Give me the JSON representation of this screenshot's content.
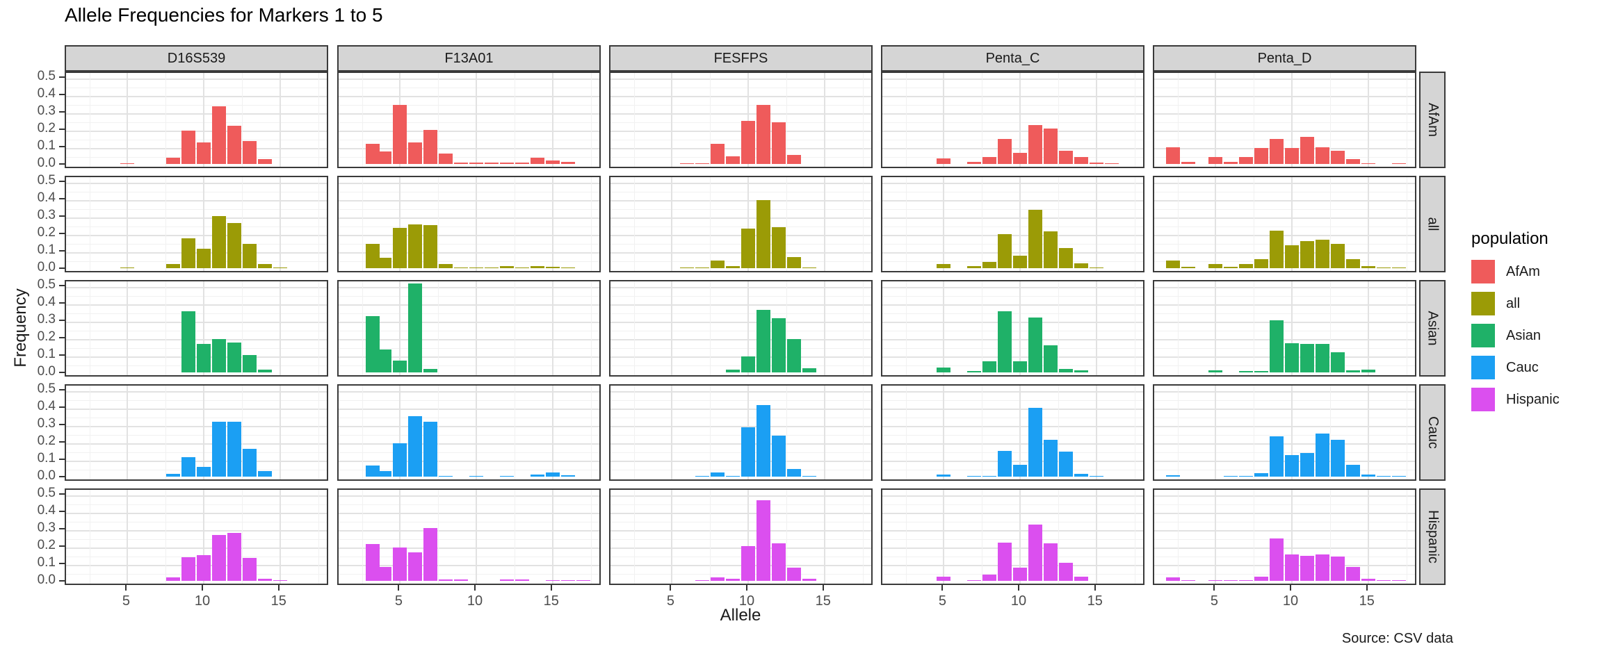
{
  "title": "Allele Frequencies for Markers 1 to 5",
  "caption": "Source: CSV data",
  "axes": {
    "x_label": "Allele",
    "y_label": "Frequency",
    "x_ticks": [
      "5",
      "10",
      "15"
    ],
    "x_tick_values": [
      5,
      10,
      15
    ],
    "x_minor_values": [
      2.5,
      7.5,
      12.5,
      17.5
    ],
    "y_ticks": [
      "0.0",
      "0.1",
      "0.2",
      "0.3",
      "0.4",
      "0.5"
    ],
    "y_tick_values": [
      0.0,
      0.1,
      0.2,
      0.3,
      0.4,
      0.5
    ]
  },
  "legend": {
    "title": "population",
    "entries": [
      {
        "label": "AfAm",
        "color": "#EF5B5B"
      },
      {
        "label": "all",
        "color": "#9B9B06"
      },
      {
        "label": "Asian",
        "color": "#1FB168"
      },
      {
        "label": "Cauc",
        "color": "#1B9FF3"
      },
      {
        "label": "Hispanic",
        "color": "#DB4FEF"
      }
    ]
  },
  "chart_data": {
    "type": "bar",
    "title": "Allele Frequencies for Markers 1 to 5",
    "xlabel": "Allele",
    "ylabel": "Frequency",
    "ylim": [
      0,
      0.5
    ],
    "xlim": [
      1,
      18.25
    ],
    "grid": "on",
    "legend_position": "right",
    "facet_columns": [
      "D16S539",
      "F13A01",
      "FESFPS",
      "Penta_C",
      "Penta_D"
    ],
    "facet_rows": [
      "AfAm",
      "all",
      "Asian",
      "Cauc",
      "Hispanic"
    ],
    "series": [
      {
        "marker": "D16S539",
        "population": "AfAm",
        "points": [
          [
            5,
            0.004
          ],
          [
            8,
            0.035
          ],
          [
            9,
            0.19
          ],
          [
            10,
            0.125
          ],
          [
            11,
            0.33
          ],
          [
            12,
            0.22
          ],
          [
            13,
            0.13
          ],
          [
            14,
            0.028
          ]
        ]
      },
      {
        "marker": "D16S539",
        "population": "all",
        "points": [
          [
            5,
            0.003
          ],
          [
            8,
            0.025
          ],
          [
            9,
            0.17
          ],
          [
            10,
            0.11
          ],
          [
            11,
            0.3
          ],
          [
            12,
            0.26
          ],
          [
            13,
            0.14
          ],
          [
            14,
            0.025
          ],
          [
            15,
            0.003
          ]
        ]
      },
      {
        "marker": "D16S539",
        "population": "Asian",
        "points": [
          [
            9,
            0.35
          ],
          [
            10,
            0.165
          ],
          [
            11,
            0.19
          ],
          [
            12,
            0.17
          ],
          [
            13,
            0.098
          ],
          [
            14,
            0.015
          ]
        ]
      },
      {
        "marker": "D16S539",
        "population": "Cauc",
        "points": [
          [
            8,
            0.015
          ],
          [
            9,
            0.11
          ],
          [
            10,
            0.055
          ],
          [
            11,
            0.315
          ],
          [
            12,
            0.315
          ],
          [
            13,
            0.16
          ],
          [
            14,
            0.03
          ]
        ]
      },
      {
        "marker": "D16S539",
        "population": "Hispanic",
        "points": [
          [
            8,
            0.018
          ],
          [
            9,
            0.136
          ],
          [
            10,
            0.148
          ],
          [
            11,
            0.265
          ],
          [
            12,
            0.277
          ],
          [
            13,
            0.133
          ],
          [
            14,
            0.013
          ],
          [
            15,
            0.003
          ]
        ]
      },
      {
        "marker": "F13A01",
        "population": "AfAm",
        "points": [
          [
            3.2,
            0.115
          ],
          [
            4,
            0.07
          ],
          [
            5,
            0.34
          ],
          [
            6,
            0.125
          ],
          [
            7,
            0.195
          ],
          [
            8,
            0.058
          ],
          [
            9,
            0.006
          ],
          [
            10,
            0.006
          ],
          [
            11,
            0.006
          ],
          [
            12,
            0.006
          ],
          [
            13,
            0.006
          ],
          [
            14,
            0.035
          ],
          [
            15,
            0.02
          ],
          [
            16,
            0.013
          ]
        ]
      },
      {
        "marker": "F13A01",
        "population": "all",
        "points": [
          [
            3.2,
            0.14
          ],
          [
            4,
            0.06
          ],
          [
            5,
            0.23
          ],
          [
            6,
            0.25
          ],
          [
            7,
            0.248
          ],
          [
            8,
            0.022
          ],
          [
            9,
            0.004
          ],
          [
            10,
            0.004
          ],
          [
            11,
            0.004
          ],
          [
            12,
            0.01
          ],
          [
            13,
            0.004
          ],
          [
            14,
            0.012
          ],
          [
            15,
            0.007
          ],
          [
            16,
            0.005
          ]
        ]
      },
      {
        "marker": "F13A01",
        "population": "Asian",
        "points": [
          [
            3.2,
            0.325
          ],
          [
            4,
            0.13
          ],
          [
            5,
            0.067
          ],
          [
            6,
            0.51
          ],
          [
            7,
            0.021
          ]
        ]
      },
      {
        "marker": "F13A01",
        "population": "Cauc",
        "points": [
          [
            3.2,
            0.062
          ],
          [
            4,
            0.03
          ],
          [
            5,
            0.19
          ],
          [
            6,
            0.348
          ],
          [
            7,
            0.315
          ],
          [
            8,
            0.005
          ],
          [
            10,
            0.004
          ],
          [
            12,
            0.004
          ],
          [
            14,
            0.012
          ],
          [
            15,
            0.022
          ],
          [
            16,
            0.008
          ]
        ]
      },
      {
        "marker": "F13A01",
        "population": "Hispanic",
        "points": [
          [
            3.2,
            0.213
          ],
          [
            4,
            0.08
          ],
          [
            5,
            0.193
          ],
          [
            6,
            0.165
          ],
          [
            7,
            0.305
          ],
          [
            8,
            0.007
          ],
          [
            9,
            0.007
          ],
          [
            12,
            0.007
          ],
          [
            13,
            0.007
          ],
          [
            15,
            0.005
          ],
          [
            16,
            0.005
          ],
          [
            17,
            0.003
          ]
        ]
      },
      {
        "marker": "FESFPS",
        "population": "AfAm",
        "points": [
          [
            6,
            0.003
          ],
          [
            7,
            0.003
          ],
          [
            8,
            0.115
          ],
          [
            9,
            0.042
          ],
          [
            10,
            0.248
          ],
          [
            11,
            0.34
          ],
          [
            12,
            0.24
          ],
          [
            13,
            0.052
          ]
        ]
      },
      {
        "marker": "FESFPS",
        "population": "all",
        "points": [
          [
            6,
            0.002
          ],
          [
            7,
            0.003
          ],
          [
            8,
            0.045
          ],
          [
            9,
            0.013
          ],
          [
            10,
            0.228
          ],
          [
            11,
            0.39
          ],
          [
            12,
            0.235
          ],
          [
            13,
            0.065
          ],
          [
            14,
            0.005
          ]
        ]
      },
      {
        "marker": "FESFPS",
        "population": "Asian",
        "points": [
          [
            9,
            0.015
          ],
          [
            10,
            0.093
          ],
          [
            11,
            0.36
          ],
          [
            12,
            0.31
          ],
          [
            13,
            0.19
          ],
          [
            14,
            0.025
          ]
        ]
      },
      {
        "marker": "FESFPS",
        "population": "Cauc",
        "points": [
          [
            7,
            0.003
          ],
          [
            8,
            0.025
          ],
          [
            9,
            0.003
          ],
          [
            10,
            0.285
          ],
          [
            11,
            0.41
          ],
          [
            12,
            0.237
          ],
          [
            13,
            0.042
          ],
          [
            14,
            0.004
          ]
        ]
      },
      {
        "marker": "FESFPS",
        "population": "Hispanic",
        "points": [
          [
            7,
            0.003
          ],
          [
            8,
            0.018
          ],
          [
            9,
            0.012
          ],
          [
            10,
            0.2
          ],
          [
            11,
            0.465
          ],
          [
            12,
            0.217
          ],
          [
            13,
            0.075
          ],
          [
            14,
            0.01
          ]
        ]
      },
      {
        "marker": "Penta_C",
        "population": "AfAm",
        "points": [
          [
            5,
            0.03
          ],
          [
            7,
            0.012
          ],
          [
            8,
            0.04
          ],
          [
            9,
            0.145
          ],
          [
            10,
            0.065
          ],
          [
            11,
            0.225
          ],
          [
            12,
            0.205
          ],
          [
            13,
            0.075
          ],
          [
            14,
            0.04
          ],
          [
            15,
            0.008
          ],
          [
            16,
            0.004
          ]
        ]
      },
      {
        "marker": "Penta_C",
        "population": "all",
        "points": [
          [
            5,
            0.025
          ],
          [
            7,
            0.012
          ],
          [
            8,
            0.035
          ],
          [
            9,
            0.195
          ],
          [
            10,
            0.072
          ],
          [
            11,
            0.335
          ],
          [
            12,
            0.21
          ],
          [
            13,
            0.115
          ],
          [
            14,
            0.027
          ],
          [
            15,
            0.005
          ]
        ]
      },
      {
        "marker": "Penta_C",
        "population": "Asian",
        "points": [
          [
            5,
            0.028
          ],
          [
            7,
            0.008
          ],
          [
            8,
            0.062
          ],
          [
            9,
            0.35
          ],
          [
            10,
            0.062
          ],
          [
            11,
            0.315
          ],
          [
            12,
            0.155
          ],
          [
            13,
            0.018
          ],
          [
            14,
            0.012
          ]
        ]
      },
      {
        "marker": "Penta_C",
        "population": "Cauc",
        "points": [
          [
            5,
            0.012
          ],
          [
            7,
            0.005
          ],
          [
            8,
            0.005
          ],
          [
            9,
            0.148
          ],
          [
            10,
            0.068
          ],
          [
            11,
            0.395
          ],
          [
            12,
            0.21
          ],
          [
            13,
            0.145
          ],
          [
            14,
            0.015
          ],
          [
            15,
            0.003
          ]
        ]
      },
      {
        "marker": "Penta_C",
        "population": "Hispanic",
        "points": [
          [
            5,
            0.025
          ],
          [
            7,
            0.005
          ],
          [
            8,
            0.035
          ],
          [
            9,
            0.22
          ],
          [
            10,
            0.075
          ],
          [
            11,
            0.325
          ],
          [
            12,
            0.215
          ],
          [
            13,
            0.105
          ],
          [
            14,
            0.022
          ]
        ]
      },
      {
        "marker": "Penta_D",
        "population": "AfAm",
        "points": [
          [
            2.2,
            0.095
          ],
          [
            3.2,
            0.012
          ],
          [
            5,
            0.04
          ],
          [
            6,
            0.012
          ],
          [
            7,
            0.04
          ],
          [
            8,
            0.093
          ],
          [
            9,
            0.145
          ],
          [
            10,
            0.093
          ],
          [
            11,
            0.155
          ],
          [
            12,
            0.095
          ],
          [
            13,
            0.075
          ],
          [
            14,
            0.028
          ],
          [
            15,
            0.005
          ],
          [
            17,
            0.005
          ]
        ]
      },
      {
        "marker": "Penta_D",
        "population": "all",
        "points": [
          [
            2.2,
            0.045
          ],
          [
            3.2,
            0.008
          ],
          [
            5,
            0.022
          ],
          [
            6,
            0.006
          ],
          [
            7,
            0.022
          ],
          [
            8,
            0.05
          ],
          [
            9,
            0.215
          ],
          [
            10,
            0.13
          ],
          [
            11,
            0.155
          ],
          [
            12,
            0.165
          ],
          [
            13,
            0.14
          ],
          [
            14,
            0.05
          ],
          [
            15,
            0.012
          ],
          [
            16,
            0.003
          ],
          [
            17,
            0.003
          ]
        ]
      },
      {
        "marker": "Penta_D",
        "population": "Asian",
        "points": [
          [
            5,
            0.012
          ],
          [
            7,
            0.008
          ],
          [
            8,
            0.008
          ],
          [
            9,
            0.3
          ],
          [
            10,
            0.168
          ],
          [
            11,
            0.165
          ],
          [
            12,
            0.165
          ],
          [
            13,
            0.115
          ],
          [
            14,
            0.012
          ],
          [
            15,
            0.015
          ]
        ]
      },
      {
        "marker": "Penta_D",
        "population": "Cauc",
        "points": [
          [
            2.2,
            0.006
          ],
          [
            6,
            0.005
          ],
          [
            7,
            0.005
          ],
          [
            8,
            0.02
          ],
          [
            9,
            0.23
          ],
          [
            10,
            0.125
          ],
          [
            11,
            0.135
          ],
          [
            12,
            0.247
          ],
          [
            13,
            0.21
          ],
          [
            14,
            0.066
          ],
          [
            15,
            0.012
          ],
          [
            16,
            0.005
          ],
          [
            17,
            0.004
          ]
        ]
      },
      {
        "marker": "Penta_D",
        "population": "Hispanic",
        "points": [
          [
            2.2,
            0.02
          ],
          [
            3.2,
            0.005
          ],
          [
            5,
            0.005
          ],
          [
            6,
            0.005
          ],
          [
            7,
            0.005
          ],
          [
            8,
            0.025
          ],
          [
            9,
            0.245
          ],
          [
            10,
            0.15
          ],
          [
            11,
            0.145
          ],
          [
            12,
            0.15
          ],
          [
            13,
            0.14
          ],
          [
            14,
            0.08
          ],
          [
            15,
            0.012
          ],
          [
            16,
            0.005
          ],
          [
            17,
            0.004
          ]
        ]
      }
    ]
  }
}
